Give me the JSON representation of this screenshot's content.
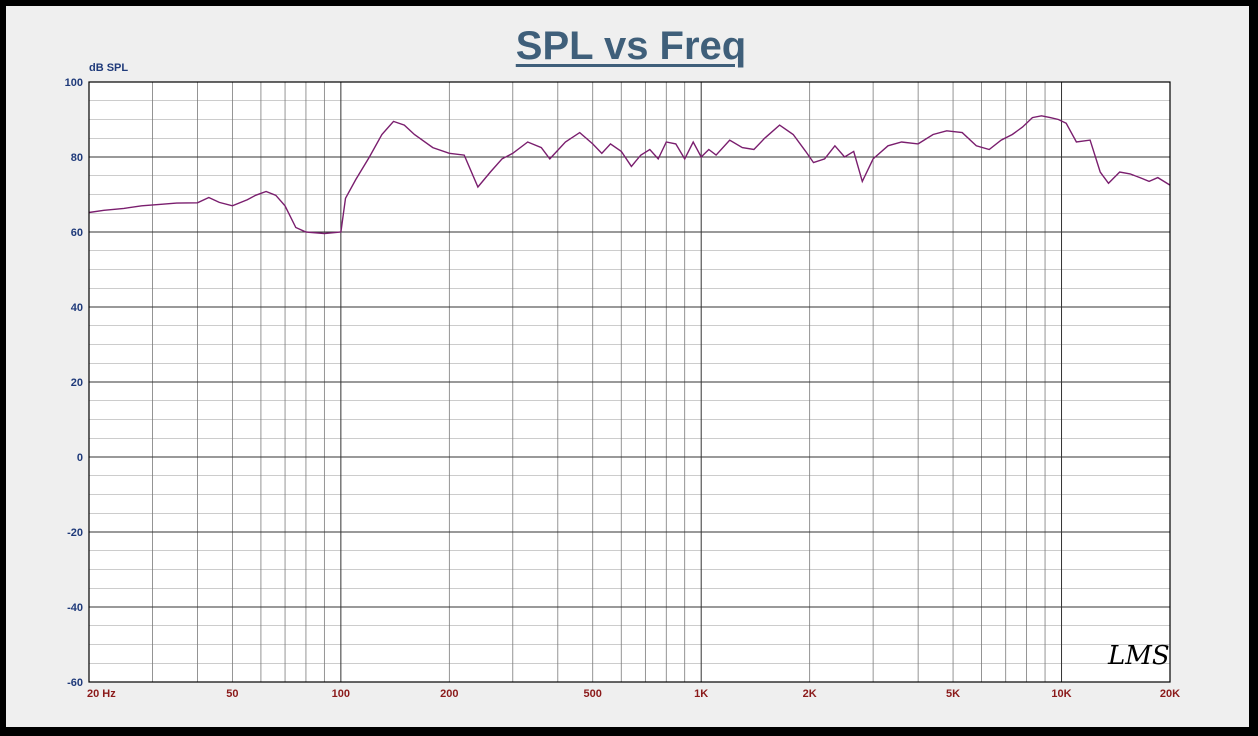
{
  "chart_data": {
    "type": "line",
    "title": "SPL vs Freq",
    "ylabel": "dB SPL",
    "xlabel": "",
    "x_scale": "log",
    "xlim": [
      20,
      20000
    ],
    "ylim": [
      -60,
      100
    ],
    "grid": true,
    "y_ticks": [
      100,
      80,
      60,
      40,
      20,
      0,
      -20,
      -40,
      -60
    ],
    "x_tick_labels": [
      {
        "value": 20,
        "label": "20  Hz"
      },
      {
        "value": 50,
        "label": "50"
      },
      {
        "value": 100,
        "label": "100"
      },
      {
        "value": 200,
        "label": "200"
      },
      {
        "value": 500,
        "label": "500"
      },
      {
        "value": 1000,
        "label": "1K"
      },
      {
        "value": 2000,
        "label": "2K"
      },
      {
        "value": 5000,
        "label": "5K"
      },
      {
        "value": 10000,
        "label": "10K"
      },
      {
        "value": 20000,
        "label": "20K"
      }
    ],
    "series": [
      {
        "color": "#7a1e6e",
        "x": [
          20,
          22,
          25,
          28,
          32,
          35,
          40,
          43,
          46,
          50,
          55,
          58,
          62,
          66,
          70,
          75,
          80,
          90,
          100,
          103,
          110,
          120,
          130,
          140,
          150,
          160,
          180,
          200,
          220,
          240,
          260,
          280,
          300,
          330,
          360,
          380,
          420,
          460,
          500,
          530,
          560,
          600,
          640,
          680,
          720,
          760,
          800,
          850,
          900,
          950,
          1000,
          1050,
          1100,
          1200,
          1300,
          1400,
          1500,
          1650,
          1800,
          1950,
          2050,
          2200,
          2350,
          2500,
          2650,
          2800,
          3000,
          3300,
          3600,
          4000,
          4400,
          4800,
          5300,
          5800,
          6300,
          6800,
          7300,
          7800,
          8300,
          8800,
          9300,
          9800,
          10300,
          11000,
          12000,
          12800,
          13500,
          14500,
          15500,
          16500,
          17500,
          18500,
          20000
        ],
        "y": [
          65.2,
          65.8,
          66.3,
          67.0,
          67.4,
          67.7,
          67.8,
          69.2,
          67.9,
          67.0,
          68.6,
          69.8,
          70.8,
          69.8,
          67.0,
          61.2,
          60.0,
          59.6,
          60.0,
          69.0,
          74.0,
          80.0,
          86.0,
          89.5,
          88.5,
          86.0,
          82.5,
          81.0,
          80.5,
          72.0,
          76.0,
          79.5,
          81.0,
          84.0,
          82.5,
          79.5,
          84.0,
          86.5,
          83.5,
          81.0,
          83.5,
          81.5,
          77.5,
          80.5,
          82.0,
          79.5,
          84.0,
          83.5,
          79.5,
          84.0,
          80.0,
          82.0,
          80.5,
          84.5,
          82.5,
          82.0,
          85.0,
          88.5,
          86.0,
          81.5,
          78.5,
          79.5,
          83.0,
          80.0,
          81.5,
          73.5,
          79.5,
          83.0,
          84.0,
          83.5,
          86.0,
          87.0,
          86.5,
          83.0,
          82.0,
          84.5,
          86.0,
          88.0,
          90.5,
          91.0,
          90.5,
          90.0,
          89.0,
          84.0,
          84.5,
          76.0,
          73.0,
          76.0,
          75.5,
          74.5,
          73.5,
          74.5,
          72.5
        ]
      }
    ]
  },
  "watermark": "LMS"
}
